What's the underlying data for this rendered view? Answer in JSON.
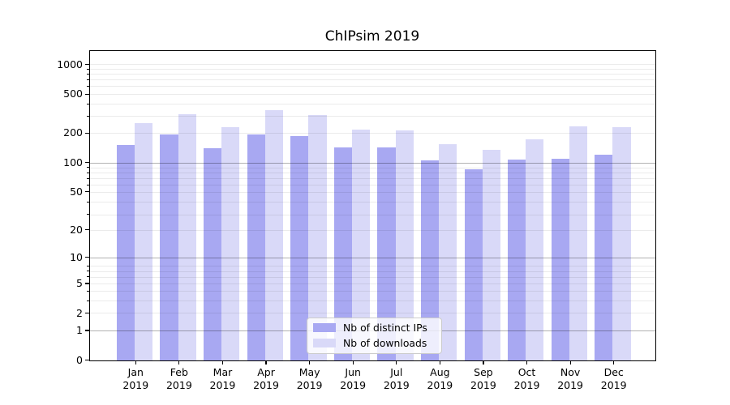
{
  "title": "ChIPsim 2019",
  "legend": {
    "items": [
      {
        "label": "Nb of distinct IPs",
        "series_key": "distinct_ips"
      },
      {
        "label": "Nb of downloads",
        "series_key": "downloads"
      }
    ]
  },
  "colors": {
    "distinct_ips": "#a8a8f2",
    "downloads": "#d9d9f8",
    "grid_major": "rgba(0,0,0,0.30)",
    "grid_minor": "rgba(0,0,0,0.08)",
    "axis": "#000000"
  },
  "x_axis": {
    "year_line": "2019",
    "months": [
      "Jan",
      "Feb",
      "Mar",
      "Apr",
      "May",
      "Jun",
      "Jul",
      "Aug",
      "Sep",
      "Oct",
      "Nov",
      "Dec"
    ]
  },
  "y_axis": {
    "tick_labels": [
      "0",
      "1",
      "2",
      "5",
      "10",
      "20",
      "50",
      "100",
      "200",
      "500",
      "1000"
    ]
  },
  "chart_data": {
    "type": "bar",
    "title": "ChIPsim 2019",
    "categories": [
      "Jan 2019",
      "Feb 2019",
      "Mar 2019",
      "Apr 2019",
      "May 2019",
      "Jun 2019",
      "Jul 2019",
      "Aug 2019",
      "Sep 2019",
      "Oct 2019",
      "Nov 2019",
      "Dec 2019"
    ],
    "series": [
      {
        "name": "Nb of distinct IPs",
        "values": [
          152,
          193,
          141,
          194,
          188,
          144,
          144,
          105,
          85,
          108,
          110,
          121
        ]
      },
      {
        "name": "Nb of downloads",
        "values": [
          252,
          315,
          230,
          344,
          308,
          218,
          215,
          155,
          136,
          175,
          237,
          232
        ]
      }
    ],
    "yscale": "log10(1+v)",
    "yticks": [
      0,
      1,
      2,
      5,
      10,
      20,
      50,
      100,
      200,
      500,
      1000
    ],
    "major_grid_values": [
      1,
      10,
      100
    ],
    "ylim": [
      0,
      1353
    ],
    "grid": true,
    "legend_position": "lower center"
  }
}
